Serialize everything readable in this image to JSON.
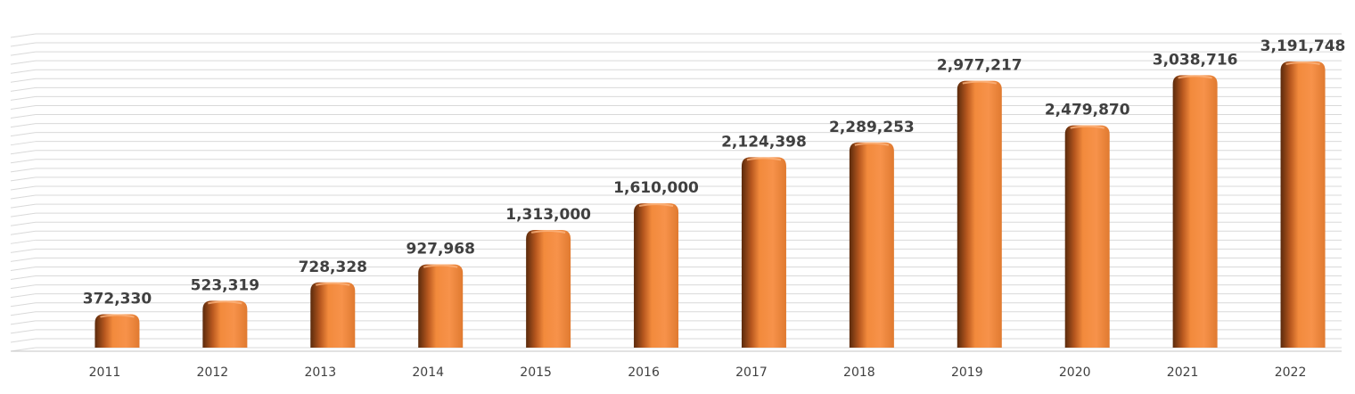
{
  "chart_data": {
    "type": "bar",
    "title": "",
    "xlabel": "",
    "ylabel": "",
    "categories": [
      "2011",
      "2012",
      "2013",
      "2014",
      "2015",
      "2016",
      "2017",
      "2018",
      "2019",
      "2020",
      "2021",
      "2022"
    ],
    "values": [
      372330,
      523319,
      728328,
      927968,
      1313000,
      1610000,
      2124398,
      2289253,
      2977217,
      2479870,
      3038716,
      3191748
    ],
    "value_labels": [
      "372,330",
      "523,319",
      "728,328",
      "927,968",
      "1,313,000",
      "1,610,000",
      "2,124,398",
      "2,289,253",
      "2,977,217",
      "2,479,870",
      "3,038,716",
      "3,191,748"
    ],
    "ylim": [
      0,
      3500000
    ],
    "grid": true,
    "legend": "none",
    "bar_color": "#f28a3c",
    "bar_shadow_color": "#7a3a12",
    "grid_color": "#d9d9d9",
    "text_color": "#404040"
  }
}
